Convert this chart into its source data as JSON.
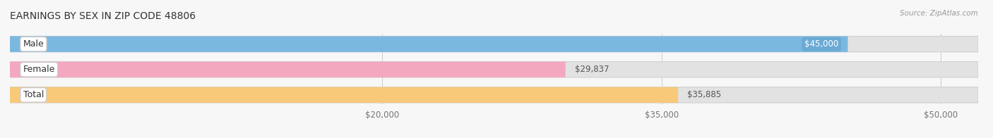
{
  "title": "EARNINGS BY SEX IN ZIP CODE 48806",
  "source": "Source: ZipAtlas.com",
  "categories": [
    "Male",
    "Female",
    "Total"
  ],
  "values": [
    45000,
    29837,
    35885
  ],
  "bar_colors": [
    "#7ab8e0",
    "#f4a8c0",
    "#f9c97a"
  ],
  "bg_bar_color": "#e2e2e2",
  "label_badge_colors": [
    "#7ab8e0",
    "#f4a8c0",
    "#f9c97a"
  ],
  "value_badge_color_male": "#6aaad4",
  "x_min": 0,
  "x_max": 52000,
  "x_ticks": [
    20000,
    35000,
    50000
  ],
  "x_tick_labels": [
    "$20,000",
    "$35,000",
    "$50,000"
  ],
  "bar_label_inside": [
    "$45,000",
    null,
    null
  ],
  "bar_label_outside": [
    null,
    "$29,837",
    "$35,885"
  ],
  "background_color": "#f7f7f7",
  "title_fontsize": 10,
  "tick_fontsize": 8.5,
  "bar_label_fontsize": 8.5,
  "category_fontsize": 9,
  "bar_height": 0.62,
  "bar_gap": 0.18,
  "rounding": 0.3
}
